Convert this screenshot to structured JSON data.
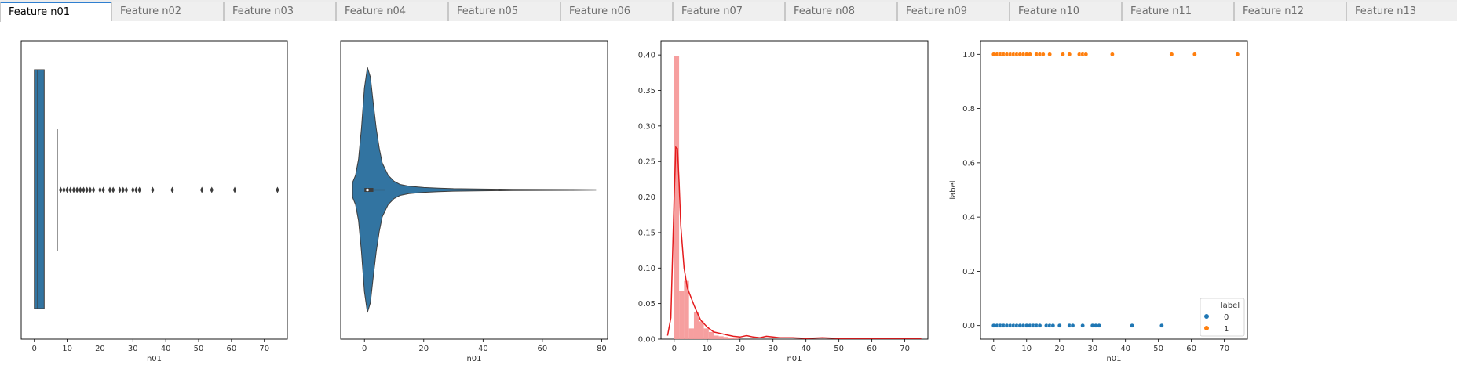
{
  "tabs": [
    {
      "label": "Feature n01",
      "active": true
    },
    {
      "label": "Feature n02",
      "active": false
    },
    {
      "label": "Feature n03",
      "active": false
    },
    {
      "label": "Feature n04",
      "active": false
    },
    {
      "label": "Feature n05",
      "active": false
    },
    {
      "label": "Feature n06",
      "active": false
    },
    {
      "label": "Feature n07",
      "active": false
    },
    {
      "label": "Feature n08",
      "active": false
    },
    {
      "label": "Feature n09",
      "active": false
    },
    {
      "label": "Feature n10",
      "active": false
    },
    {
      "label": "Feature n11",
      "active": false
    },
    {
      "label": "Feature n12",
      "active": false
    },
    {
      "label": "Feature n13",
      "active": false
    }
  ],
  "colors": {
    "box": "#3274a1",
    "hist": "#f59a9a",
    "kde": "#e41a1c",
    "class0": "#1f77b4",
    "class1": "#ff7f0e"
  },
  "chart_data": [
    {
      "type": "box",
      "xlabel": "n01",
      "xlim": [
        -4,
        77
      ],
      "xticks": [
        0,
        10,
        20,
        30,
        40,
        50,
        60,
        70
      ],
      "grid": false,
      "box": {
        "whisker_low": 0,
        "q1": 0,
        "median": 1,
        "q3": 3,
        "whisker_high": 7
      },
      "outliers": [
        8,
        9,
        10,
        11,
        12,
        13,
        14,
        15,
        16,
        17,
        18,
        20,
        21,
        23,
        24,
        26,
        27,
        28,
        30,
        31,
        32,
        36,
        42,
        51,
        54,
        61,
        74
      ]
    },
    {
      "type": "violin",
      "xlabel": "n01",
      "xlim": [
        -8,
        82
      ],
      "xticks": [
        0,
        20,
        40,
        60,
        80
      ],
      "grid": false,
      "density_x": [
        -4,
        -3,
        -2,
        -1,
        0,
        1,
        2,
        3,
        4,
        5,
        6,
        8,
        10,
        12,
        15,
        20,
        25,
        30,
        40,
        50,
        60,
        70,
        78
      ],
      "density": [
        0.06,
        0.12,
        0.25,
        0.5,
        0.83,
        1.0,
        0.92,
        0.7,
        0.5,
        0.34,
        0.22,
        0.12,
        0.07,
        0.045,
        0.03,
        0.02,
        0.015,
        0.01,
        0.007,
        0.005,
        0.004,
        0.003,
        0.002
      ],
      "box": {
        "q1": 0,
        "median": 1,
        "q3": 3,
        "whisker_high": 7
      }
    },
    {
      "type": "histogram",
      "xlabel": "n01",
      "xlim": [
        -4,
        77
      ],
      "ylim": [
        0,
        0.42
      ],
      "yticks": [
        0.0,
        0.05,
        0.1,
        0.15,
        0.2,
        0.25,
        0.3,
        0.35,
        0.4
      ],
      "xticks": [
        0,
        10,
        20,
        30,
        40,
        50,
        60,
        70
      ],
      "grid": false,
      "bin_width": 1.5,
      "bin_starts": [
        0,
        1.5,
        3,
        4.5,
        6,
        7.5,
        9,
        10.5,
        12,
        13.5,
        15,
        16.5,
        18
      ],
      "hist_values": [
        0.399,
        0.068,
        0.082,
        0.015,
        0.038,
        0.025,
        0.015,
        0.01,
        0.005,
        0.004,
        0.003,
        0.002,
        0.001
      ],
      "kde_x": [
        -2,
        -1,
        0,
        0.5,
        1,
        1.5,
        2,
        3,
        4,
        5,
        6,
        7,
        8,
        10,
        12,
        14,
        16,
        18,
        20,
        22,
        24,
        26,
        28,
        30,
        32,
        34,
        36,
        40,
        45,
        50,
        55,
        60,
        65,
        70,
        75
      ],
      "kde_y": [
        0.005,
        0.03,
        0.2,
        0.27,
        0.268,
        0.22,
        0.16,
        0.1,
        0.072,
        0.06,
        0.048,
        0.037,
        0.027,
        0.017,
        0.01,
        0.008,
        0.006,
        0.004,
        0.003,
        0.005,
        0.003,
        0.002,
        0.004,
        0.003,
        0.002,
        0.002,
        0.002,
        0.001,
        0.002,
        0.001,
        0.001,
        0.001,
        0.001,
        0.001,
        0.001
      ]
    },
    {
      "type": "scatter",
      "xlabel": "n01",
      "ylabel": "label",
      "xlim": [
        -4,
        77
      ],
      "ylim": [
        -0.05,
        1.05
      ],
      "xticks": [
        0,
        10,
        20,
        30,
        40,
        50,
        60,
        70
      ],
      "yticks": [
        0.0,
        0.2,
        0.4,
        0.6,
        0.8,
        1.0
      ],
      "grid": false,
      "legend": {
        "title": "label",
        "placement": "lower right",
        "entries": [
          "0",
          "1"
        ]
      },
      "series": [
        {
          "name": "0",
          "x": [
            0,
            1,
            2,
            3,
            4,
            5,
            6,
            7,
            8,
            9,
            10,
            11,
            12,
            13,
            14,
            16,
            17,
            18,
            20,
            23,
            24,
            27,
            30,
            31,
            32,
            42,
            51
          ],
          "y": 0
        },
        {
          "name": "1",
          "x": [
            0,
            1,
            2,
            3,
            4,
            5,
            6,
            7,
            8,
            9,
            10,
            11,
            13,
            14,
            15,
            17,
            21,
            23,
            26,
            27,
            28,
            36,
            54,
            61,
            74
          ],
          "y": 1
        }
      ]
    }
  ]
}
